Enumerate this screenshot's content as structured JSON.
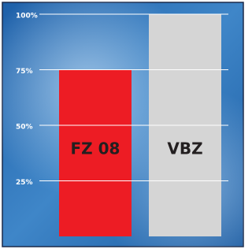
{
  "chart_data": {
    "type": "bar",
    "categories": [
      "FZ 08",
      "VBZ"
    ],
    "values": [
      75,
      100
    ],
    "colors": [
      "#ed1c24",
      "#d5d5d5"
    ],
    "ylim": [
      0,
      100
    ],
    "yticks": [
      {
        "value": 25,
        "label": "25%"
      },
      {
        "value": 50,
        "label": "50%"
      },
      {
        "value": 75,
        "label": "75%"
      },
      {
        "value": 100,
        "label": "100%"
      }
    ],
    "grid": true
  }
}
